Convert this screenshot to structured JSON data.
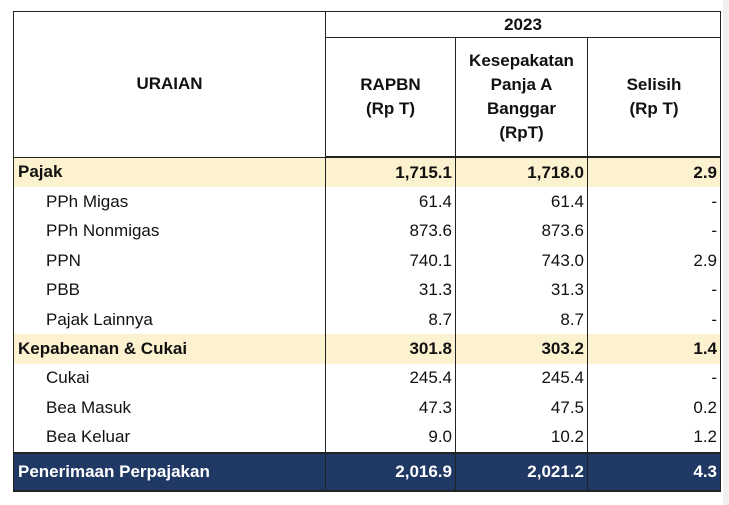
{
  "header": {
    "year": "2023",
    "uraian": "URAIAN",
    "rapbn": [
      "RAPBN",
      "(Rp T)"
    ],
    "kesepakatan": [
      "Kesepakatan",
      "Panja A",
      "Banggar",
      "(RpT)"
    ],
    "selisih": [
      "Selisih",
      "(Rp T)"
    ]
  },
  "rows": [
    {
      "label": "Pajak",
      "rapbn": "1,715.1",
      "kesepakatan": "1,718.0",
      "selisih": "2.9",
      "type": "cat"
    },
    {
      "label": "PPh Migas",
      "rapbn": "61.4",
      "kesepakatan": "61.4",
      "selisih": "-",
      "type": "item"
    },
    {
      "label": "PPh Nonmigas",
      "rapbn": "873.6",
      "kesepakatan": "873.6",
      "selisih": "-",
      "type": "item"
    },
    {
      "label": "PPN",
      "rapbn": "740.1",
      "kesepakatan": "743.0",
      "selisih": "2.9",
      "type": "item"
    },
    {
      "label": "PBB",
      "rapbn": "31.3",
      "kesepakatan": "31.3",
      "selisih": "-",
      "type": "item"
    },
    {
      "label": "Pajak Lainnya",
      "rapbn": "8.7",
      "kesepakatan": "8.7",
      "selisih": "-",
      "type": "item"
    },
    {
      "label": "Kepabeanan & Cukai",
      "rapbn": "301.8",
      "kesepakatan": "303.2",
      "selisih": "1.4",
      "type": "cat"
    },
    {
      "label": "Cukai",
      "rapbn": "245.4",
      "kesepakatan": "245.4",
      "selisih": "-",
      "type": "item"
    },
    {
      "label": "Bea Masuk",
      "rapbn": "47.3",
      "kesepakatan": "47.5",
      "selisih": "0.2",
      "type": "item"
    },
    {
      "label": "Bea Keluar",
      "rapbn": "9.0",
      "kesepakatan": "10.2",
      "selisih": "1.2",
      "type": "item"
    }
  ],
  "total": {
    "label": "Penerimaan Perpajakan",
    "rapbn": "2,016.9",
    "kesepakatan": "2,021.2",
    "selisih": "4.3"
  }
}
